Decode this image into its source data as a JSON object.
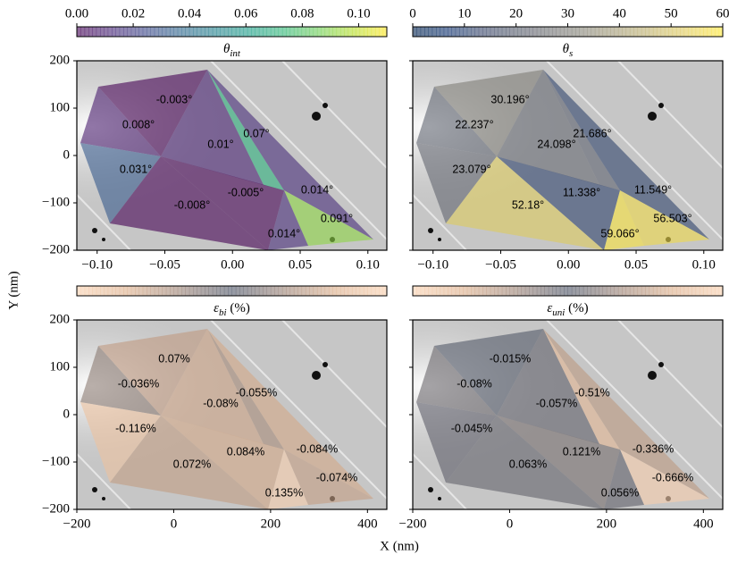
{
  "xlabel": "X (nm)",
  "ylabel": "Y (nm)",
  "chart_data": [
    {
      "type": "mesh",
      "colorbar": {
        "label": "θ",
        "label_subscript": "int",
        "colormap": "viridis",
        "lim": [
          0,
          0.11
        ],
        "ticks": [
          {
            "value": 0,
            "label": "0.00"
          },
          0.02,
          0.04,
          0.06,
          0.08,
          {
            "value": 0.1,
            "label": "0.10"
          }
        ]
      },
      "values": [
        -0.003,
        0.008,
        0.07,
        0.01,
        0.031,
        -0.005,
        0.014,
        -0.008,
        0.091,
        0.014
      ],
      "value_labels": [
        "-0.003°",
        "0.008°",
        "0.07°",
        "0.01°",
        "0.031°",
        "-0.005°",
        "0.014°",
        "-0.008°",
        "0.091°",
        "0.014°"
      ],
      "xlim": [
        -0.115,
        0.114
      ],
      "xticks": [
        {
          "value": -0.1,
          "label": "−0.10"
        },
        {
          "value": -0.05,
          "label": "−0.05"
        },
        {
          "value": 0,
          "label": "0.00"
        },
        0.05,
        {
          "value": 0.1,
          "label": "0.10"
        }
      ],
      "ylim": [
        -200,
        200
      ],
      "yticks": [
        {
          "value": -200,
          "label": "−200"
        },
        {
          "value": -100,
          "label": "−100"
        },
        0,
        100,
        200
      ],
      "ytick_labels": true
    },
    {
      "type": "mesh",
      "colorbar": {
        "label": "θ",
        "label_subscript": "s",
        "colormap": "cividis",
        "lim": [
          0,
          60
        ],
        "ticks": [
          0,
          10,
          20,
          30,
          40,
          50,
          60
        ]
      },
      "values": [
        30.196,
        22.237,
        21.686,
        24.098,
        23.079,
        11.338,
        11.549,
        52.18,
        56.503,
        59.066
      ],
      "value_labels": [
        "30.196°",
        "22.237°",
        "21.686°",
        "24.098°",
        "23.079°",
        "11.338°",
        "11.549°",
        "52.18°",
        "56.503°",
        "59.066°"
      ],
      "xlim": [
        -0.115,
        0.114
      ],
      "xticks": [
        {
          "value": -0.1,
          "label": "−0.10"
        },
        {
          "value": -0.05,
          "label": "−0.05"
        },
        {
          "value": 0,
          "label": "0.00"
        },
        0.05,
        {
          "value": 0.1,
          "label": "0.10"
        }
      ],
      "ylim": [
        -200,
        200
      ],
      "yticks": [
        -200,
        -100,
        0,
        100,
        200
      ],
      "ytick_labels": false
    },
    {
      "type": "mesh",
      "colorbar": {
        "label": "ε",
        "label_subscript": "bi",
        "label_suffix": " (%)",
        "colormap": "diverging"
      },
      "values": [
        0.07,
        -0.036,
        -0.055,
        -0.08,
        -0.116,
        0.084,
        -0.084,
        0.072,
        -0.074,
        0.135
      ],
      "value_labels": [
        "0.07%",
        "-0.036%",
        "-0.055%",
        "-0.08%",
        "-0.116%",
        "0.084%",
        "-0.084%",
        "0.072%",
        "-0.074%",
        "0.135%"
      ],
      "xlim": [
        -200,
        440
      ],
      "xticks": [
        {
          "value": -200,
          "label": "−200"
        },
        0,
        200,
        400
      ],
      "ylim": [
        -200,
        200
      ],
      "yticks": [
        {
          "value": -200,
          "label": "−200"
        },
        {
          "value": -100,
          "label": "−100"
        },
        0,
        100,
        200
      ],
      "ytick_labels": true
    },
    {
      "type": "mesh",
      "colorbar": {
        "label": "ε",
        "label_subscript": "uni",
        "label_suffix": " (%)",
        "colormap": "diverging"
      },
      "values": [
        -0.015,
        -0.08,
        -0.51,
        -0.057,
        -0.045,
        0.121,
        -0.336,
        0.063,
        -0.666,
        0.056
      ],
      "value_labels": [
        "-0.015%",
        "-0.08%",
        "-0.51%",
        "-0.057%",
        "-0.045%",
        "0.121%",
        "-0.336%",
        "0.063%",
        "-0.666%",
        "0.056%"
      ],
      "xlim": [
        -200,
        440
      ],
      "xticks": [
        {
          "value": -200,
          "label": "−200"
        },
        0,
        200,
        400
      ],
      "ylim": [
        -200,
        200
      ],
      "yticks": [
        -200,
        -100,
        0,
        100,
        200
      ],
      "ytick_labels": false
    }
  ]
}
